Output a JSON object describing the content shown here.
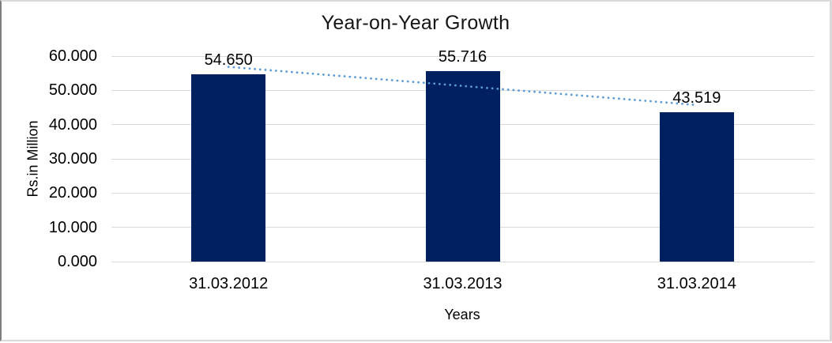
{
  "chart_data": {
    "type": "bar",
    "title": "Year-on-Year Growth",
    "xlabel": "Years",
    "ylabel": "Rs.in Million",
    "categories": [
      "31.03.2012",
      "31.03.2013",
      "31.03.2014"
    ],
    "values": [
      54.65,
      55.716,
      43.519
    ],
    "data_labels": [
      "54.650",
      "55.716",
      "43.519"
    ],
    "yticks": [
      "0.000",
      "10.000",
      "20.000",
      "30.000",
      "40.000",
      "50.000",
      "60.000"
    ],
    "ylim": [
      0,
      60
    ],
    "grid": true,
    "legend": false,
    "bar_color": "#002060",
    "gridline_color": "#D9D9D9",
    "text_color": "#000000",
    "frame_border_color": "#D9D9D9",
    "trendline": {
      "type": "linear",
      "style": "dotted",
      "color": "#5B9BD5"
    }
  }
}
